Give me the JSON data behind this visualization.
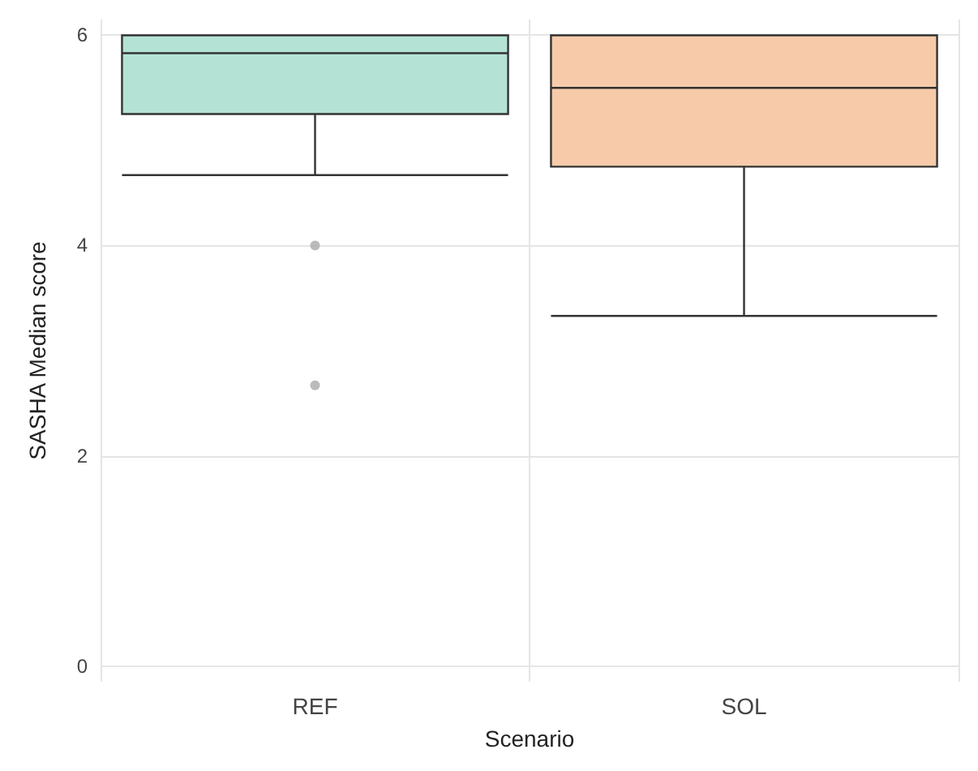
{
  "chart_data": {
    "type": "box",
    "xlabel": "Scenario",
    "ylabel": "SASHA Median score",
    "categories": [
      "REF",
      "SOL"
    ],
    "series": [
      {
        "colors": [
          "#b4e3d6",
          "#f7cbaa"
        ],
        "boxes": [
          {
            "low": 4.67,
            "q1": 5.25,
            "median": 5.83,
            "q3": 6,
            "high": 6,
            "outliers": [
              4,
              2.67
            ]
          },
          {
            "low": 3.33,
            "q1": 4.75,
            "median": 5.5,
            "q3": 6,
            "high": 6
          }
        ]
      }
    ],
    "ylim": [
      -0.15,
      6.15
    ],
    "yticks": [
      0,
      2,
      4,
      6
    ],
    "grid": true
  }
}
